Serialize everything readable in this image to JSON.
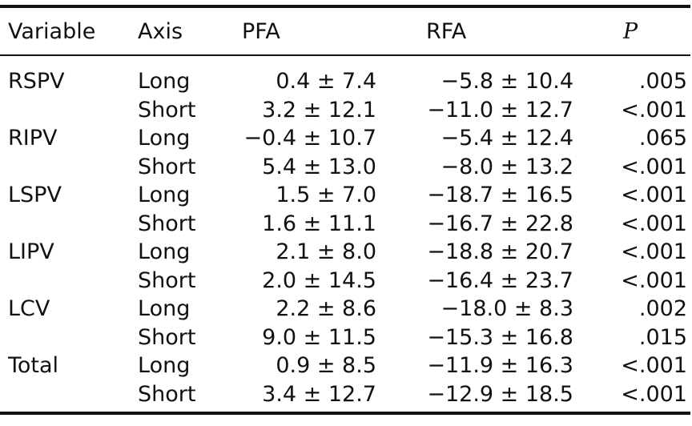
{
  "table": {
    "headers": {
      "variable": "Variable",
      "axis": "Axis",
      "pfa": "PFA",
      "rfa": "RFA",
      "p": "P"
    },
    "rows": [
      {
        "variable": "RSPV",
        "axis": "Long",
        "pfa": "0.4 ± 7.4",
        "rfa": "−5.8 ± 10.4",
        "p": ".005"
      },
      {
        "variable": "",
        "axis": "Short",
        "pfa": "3.2 ± 12.1",
        "rfa": "−11.0 ± 12.7",
        "p": "<.001"
      },
      {
        "variable": "RIPV",
        "axis": "Long",
        "pfa": "−0.4 ± 10.7",
        "rfa": "−5.4 ± 12.4",
        "p": ".065"
      },
      {
        "variable": "",
        "axis": "Short",
        "pfa": "5.4 ± 13.0",
        "rfa": "−8.0 ± 13.2",
        "p": "<.001"
      },
      {
        "variable": "LSPV",
        "axis": "Long",
        "pfa": "1.5 ± 7.0",
        "rfa": "−18.7 ± 16.5",
        "p": "<.001"
      },
      {
        "variable": "",
        "axis": "Short",
        "pfa": "1.6 ± 11.1",
        "rfa": "−16.7 ± 22.8",
        "p": "<.001"
      },
      {
        "variable": "LIPV",
        "axis": "Long",
        "pfa": "2.1 ± 8.0",
        "rfa": "−18.8 ± 20.7",
        "p": "<.001"
      },
      {
        "variable": "",
        "axis": "Short",
        "pfa": "2.0 ± 14.5",
        "rfa": "−16.4 ± 23.7",
        "p": "<.001"
      },
      {
        "variable": "LCV",
        "axis": "Long",
        "pfa": "2.2 ± 8.6",
        "rfa": "−18.0 ± 8.3",
        "p": ".002"
      },
      {
        "variable": "",
        "axis": "Short",
        "pfa": "9.0 ± 11.5",
        "rfa": "−15.3 ± 16.8",
        "p": ".015"
      },
      {
        "variable": "Total",
        "axis": "Long",
        "pfa": "0.9 ± 8.5",
        "rfa": "−11.9 ± 16.3",
        "p": "<.001"
      },
      {
        "variable": "",
        "axis": "Short",
        "pfa": "3.4 ± 12.7",
        "rfa": "−12.9 ± 18.5",
        "p": "<.001"
      }
    ]
  }
}
